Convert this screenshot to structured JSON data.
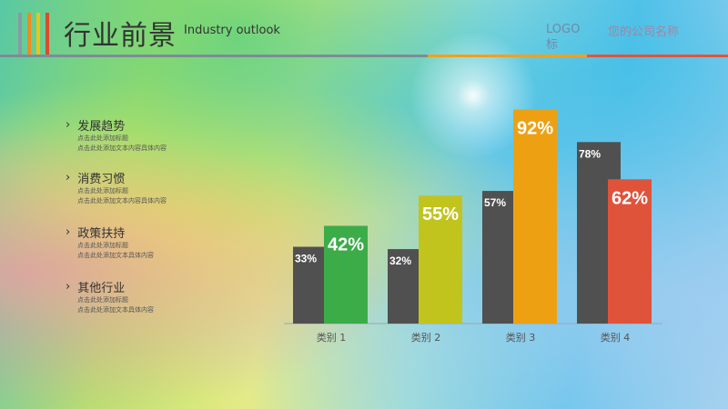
{
  "header": {
    "title": "行业前景",
    "subtitle": "Industry outlook",
    "logo": "LOGO标",
    "company": "您的公司名称",
    "colors": {
      "title": "#333333",
      "rule": "#7d8c96",
      "logo": "#6f8aa6",
      "company": "#e0556a"
    }
  },
  "trends": [
    {
      "title": "发展趋势",
      "lines": [
        "点击此处添加标题",
        "点击此处添加文本内容具体内容"
      ]
    },
    {
      "title": "消费习惯",
      "lines": [
        "点击此处添加标题",
        "点击此处添加文本内容具体内容"
      ]
    },
    {
      "title": "政策扶持",
      "lines": [
        "点击此处添加标题",
        "点击此处添加文本具体内容"
      ]
    },
    {
      "title": "其他行业",
      "lines": [
        "点击此处添加标题",
        "点击此处添加文本具体内容"
      ]
    }
  ],
  "chart_data": {
    "type": "bar",
    "categories": [
      "类别 1",
      "类别 2",
      "类别 3",
      "类别 4"
    ],
    "series": [
      {
        "values": [
          33,
          32,
          57,
          78
        ],
        "labels": [
          "33%",
          "32%",
          "57%",
          "78%"
        ],
        "color": "#505050"
      },
      {
        "values": [
          42,
          55,
          92,
          62
        ],
        "labels": [
          "42%",
          "55%",
          "92%",
          "62%"
        ],
        "colors": [
          "#3cac48",
          "#c2c41e",
          "#eea013",
          "#e0533b"
        ]
      }
    ],
    "ylim": [
      0,
      100
    ],
    "grid": false,
    "legend": "none"
  }
}
